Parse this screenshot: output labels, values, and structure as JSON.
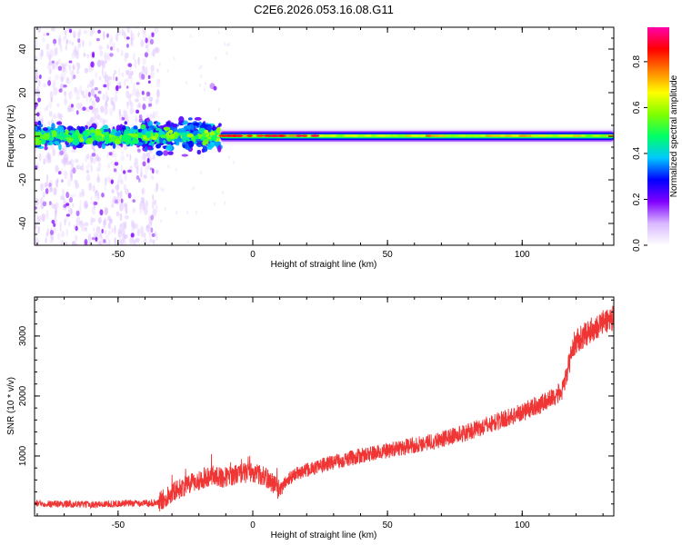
{
  "figure": {
    "title": "C2E6.2026.053.16.08.G11"
  },
  "chart_data": [
    {
      "type": "heatmap",
      "xlabel": "Height of straight line (km)",
      "ylabel": "Frequency (Hz)",
      "xlim": [
        -81,
        134
      ],
      "ylim": [
        -50,
        50
      ],
      "x_ticks": [
        -50,
        0,
        50,
        100
      ],
      "y_ticks": [
        -40,
        -20,
        0,
        20,
        40
      ],
      "colorbar": {
        "label": "Normalized spectral amplitude",
        "range": [
          0,
          0.95
        ],
        "ticks": [
          0,
          0.2,
          0.4,
          0.6,
          0.8
        ],
        "colormap": [
          "#ffffff",
          "#d9b8ff",
          "#8000ff",
          "#0000ff",
          "#00c8ff",
          "#00ff66",
          "#80ff00",
          "#ffff00",
          "#ff8000",
          "#ff0000",
          "#ff00aa"
        ]
      },
      "description_features": {
        "noisy_scatter_x_range": [
          -81,
          -35
        ],
        "turbulent_band_x_range": [
          -81,
          -12
        ],
        "clean_carrier_x_range": [
          -12,
          134
        ],
        "carrier_frequency": 0,
        "side_feature": {
          "x": -15,
          "y": 23
        }
      }
    },
    {
      "type": "line",
      "xlabel": "Height of straight line (km)",
      "ylabel": "SNR (10 * v/v)",
      "xlim": [
        -81,
        134
      ],
      "ylim": [
        0,
        3650
      ],
      "x_ticks": [
        -50,
        0,
        50,
        100
      ],
      "y_ticks": [
        1000,
        2000,
        3000
      ],
      "series": [
        {
          "color": "#f03535",
          "x": [
            -81,
            -70,
            -60,
            -50,
            -40,
            -35,
            -30,
            -25,
            -20,
            -15,
            -12,
            -10,
            -5,
            0,
            5,
            8,
            10,
            12,
            15,
            20,
            30,
            40,
            50,
            60,
            70,
            80,
            90,
            100,
            105,
            110,
            115,
            117,
            119,
            122,
            125,
            130,
            134
          ],
          "y": [
            210,
            200,
            190,
            205,
            215,
            220,
            400,
            500,
            590,
            690,
            640,
            650,
            710,
            730,
            640,
            530,
            420,
            560,
            680,
            760,
            900,
            1000,
            1090,
            1180,
            1280,
            1400,
            1560,
            1730,
            1830,
            1940,
            2080,
            2450,
            2850,
            2980,
            3080,
            3220,
            3320
          ]
        }
      ]
    }
  ]
}
